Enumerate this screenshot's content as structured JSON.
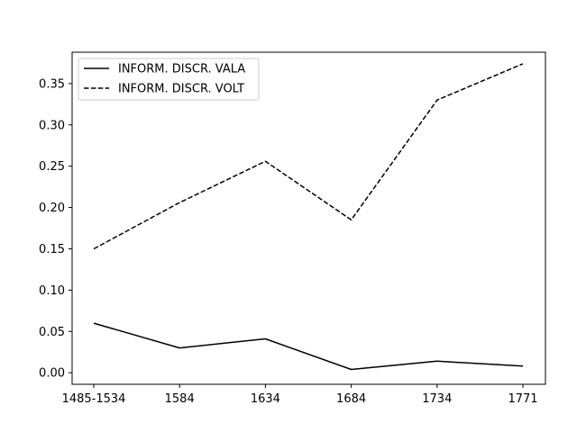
{
  "chart_data": {
    "type": "line",
    "title": "",
    "xlabel": "",
    "ylabel": "",
    "categories": [
      "1485-1534",
      "1584",
      "1634",
      "1684",
      "1734",
      "1771"
    ],
    "ylim": [
      -0.014,
      0.388
    ],
    "yticks": [
      "0.00",
      "0.05",
      "0.10",
      "0.15",
      "0.20",
      "0.25",
      "0.30",
      "0.35"
    ],
    "grid": false,
    "legend_position": "top-left",
    "series": [
      {
        "name": "INFORM. DISCR. VALA",
        "style": "solid",
        "color": "#000000",
        "values": [
          0.06,
          0.03,
          0.041,
          0.004,
          0.014,
          0.008
        ]
      },
      {
        "name": "INFORM. DISCR. VOLT",
        "style": "dashed",
        "color": "#000000",
        "values": [
          0.15,
          0.206,
          0.256,
          0.185,
          0.33,
          0.374
        ]
      }
    ]
  }
}
